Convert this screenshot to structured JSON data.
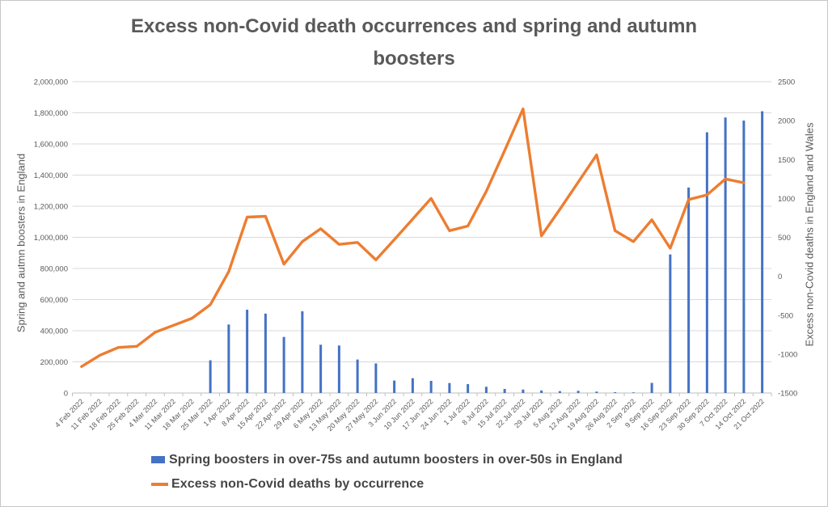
{
  "chart_data": {
    "type": "bar",
    "subtype": "combo-bar-line-dual-axis",
    "title": "Excess non-Covid death occurrences and spring and autumn boosters",
    "grid": true,
    "legend_position": "bottom-left",
    "categories": [
      "4 Feb 2022",
      "11 Feb 2022",
      "18 Feb 2022",
      "25 Feb 2022",
      "4 Mar 2022",
      "11 Mar 2022",
      "18 Mar 2022",
      "25 Mar 2022",
      "1 Apr 2022",
      "8 Apr 2022",
      "15 Apr 2022",
      "22 Apr 2022",
      "29 Apr 2022",
      "6 May 2022",
      "13 May 2022",
      "20 May 2022",
      "27 May 2022",
      "3 Jun 2022",
      "10 Jun 2022",
      "17 Jun 2022",
      "24 Jun 2022",
      "1 Jul 2022",
      "8 Jul 2022",
      "15 Jul 2022",
      "22 Jul 2022",
      "29 Jul 2022",
      "5 Aug 2022",
      "12 Aug 2022",
      "19 Aug 2022",
      "26 Aug 2022",
      "2 Sep 2022",
      "9 Sep 2022",
      "16 Sep 2022",
      "23 Sep 2022",
      "30 Sep 2022",
      "7 Oct 2022",
      "14 Oct 2022",
      "21 Oct 2022"
    ],
    "left_axis": {
      "title": "Spring and autmn boosters in England",
      "min": 0,
      "max": 2000000,
      "step": 200000,
      "ticks": [
        "0",
        "200,000",
        "400,000",
        "600,000",
        "800,000",
        "1,000,000",
        "1,200,000",
        "1,400,000",
        "1,600,000",
        "1,800,000",
        "2,000,000"
      ]
    },
    "right_axis": {
      "title": "Excess non-Covid deaths in England and Wales",
      "min": -1500,
      "max": 2500,
      "step": 500,
      "ticks": [
        "-1500",
        "-1000",
        "-500",
        "0",
        "500",
        "1000",
        "1500",
        "2000",
        "2500"
      ]
    },
    "series": [
      {
        "name": "Spring boosters in over-75s and autumn boosters in over-50s in England",
        "type": "bar",
        "axis": "left",
        "color": "#4472C4",
        "values": [
          null,
          null,
          null,
          null,
          null,
          null,
          null,
          210000,
          440000,
          535000,
          510000,
          360000,
          525000,
          310000,
          305000,
          215000,
          190000,
          80000,
          95000,
          78000,
          64000,
          57000,
          40000,
          26000,
          22000,
          16000,
          12000,
          14000,
          9000,
          5000,
          4000,
          65000,
          890000,
          1320000,
          1675000,
          1770000,
          1750000,
          1810000
        ]
      },
      {
        "name": "Excess non-Covid deaths by occurrence",
        "type": "line",
        "axis": "right",
        "color": "#ED7D31",
        "values": [
          -1160,
          -1015,
          -915,
          -900,
          -720,
          -630,
          -540,
          -365,
          60,
          760,
          770,
          155,
          445,
          610,
          410,
          435,
          210,
          470,
          735,
          1000,
          585,
          645,
          1090,
          1615,
          2150,
          520,
          860,
          1210,
          1560,
          585,
          445,
          725,
          360,
          985,
          1045,
          1250,
          1200,
          null
        ]
      }
    ],
    "colors": {
      "gridline": "#D9D9D9",
      "axis_line": "#BFBFBF",
      "tick_text": "#595959",
      "title_text": "#595959",
      "legend_text": "#454545"
    }
  }
}
